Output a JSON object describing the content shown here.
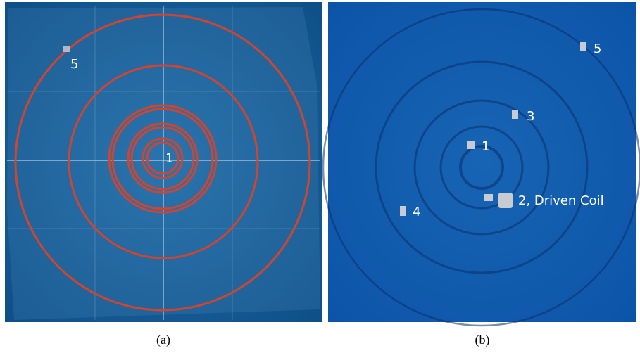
{
  "panels": [
    {
      "caption": "(a)",
      "labels": [
        "1",
        "5"
      ]
    },
    {
      "caption": "(b)",
      "labels": [
        "5",
        "3",
        "1",
        "2, Driven Coil",
        "4"
      ]
    }
  ]
}
